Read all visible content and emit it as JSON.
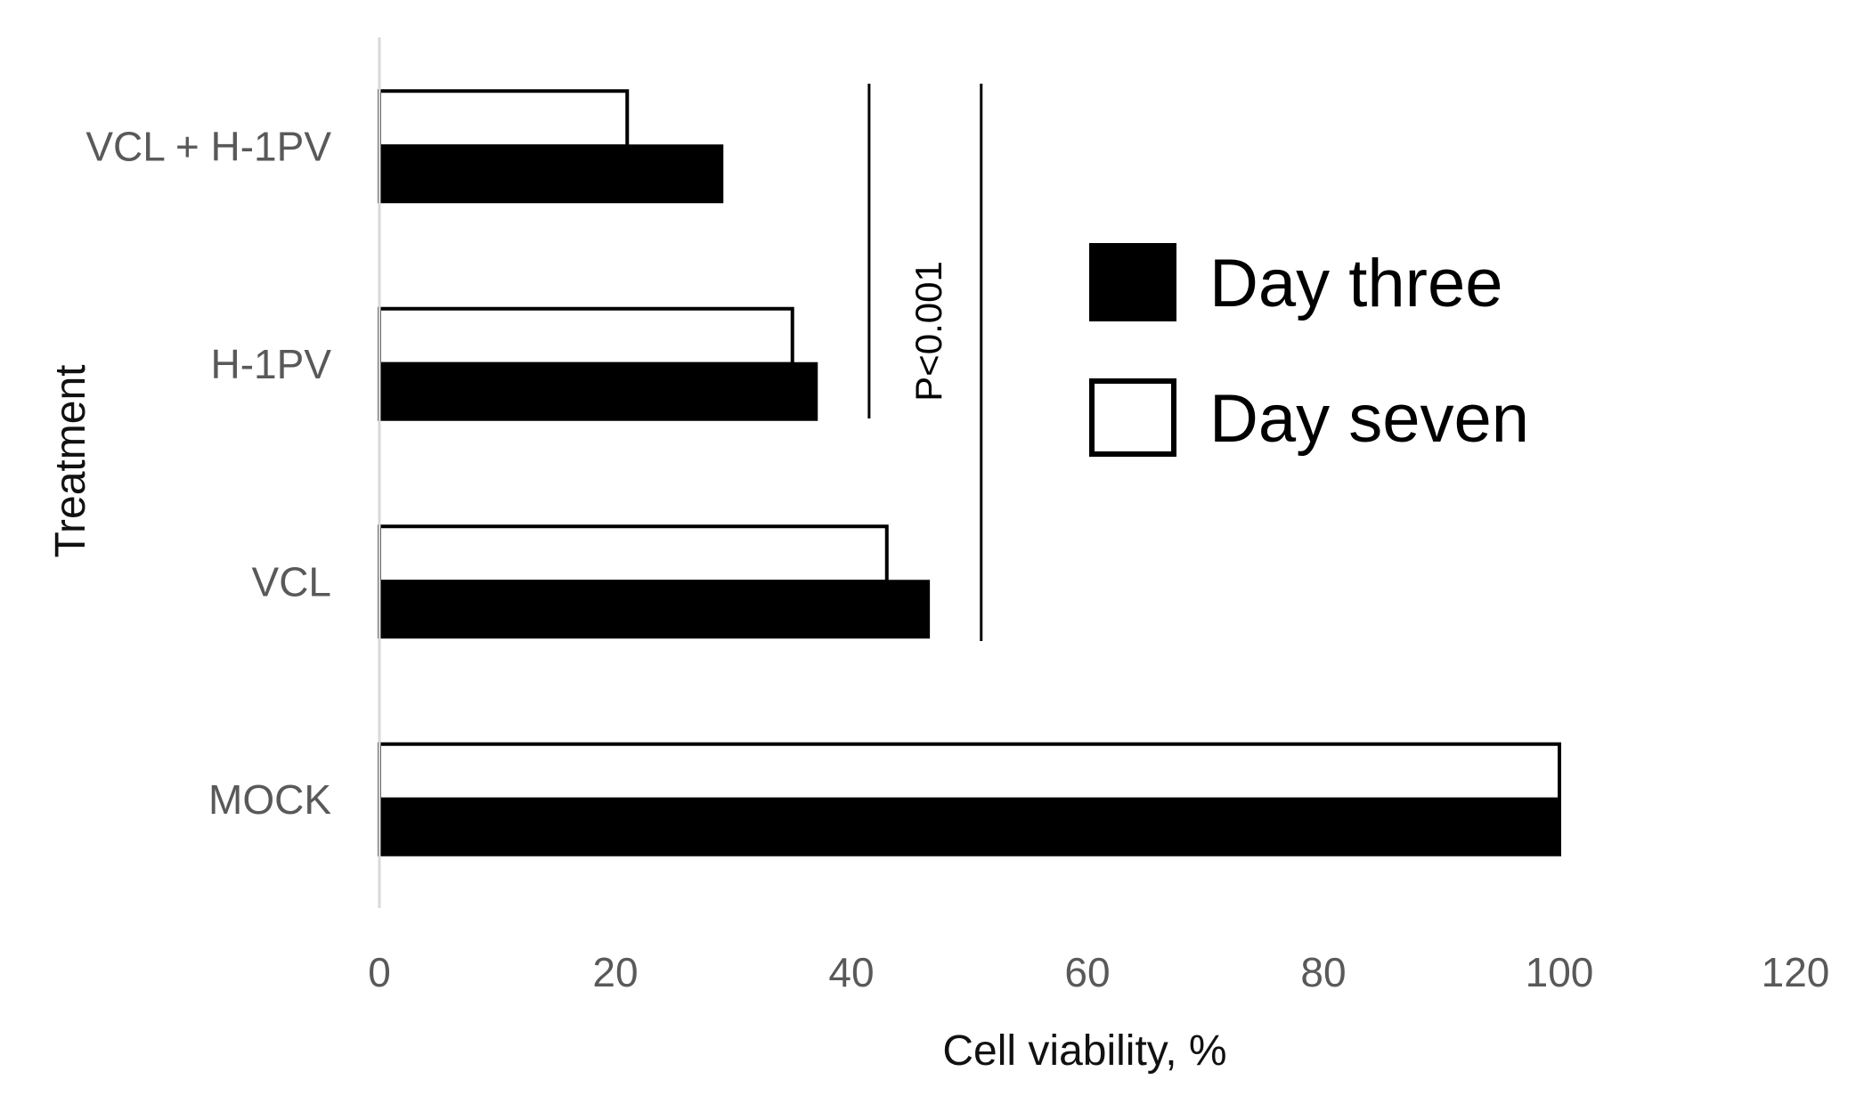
{
  "chart_data": {
    "type": "bar",
    "orientation": "horizontal",
    "title": "",
    "xlabel": "Cell viability, %",
    "ylabel": "Treatment",
    "xlim": [
      0,
      120
    ],
    "xticks": [
      "0",
      "20",
      "40",
      "60",
      "80",
      "100",
      "120"
    ],
    "categories": [
      "VCL + H-1PV",
      "H-1PV",
      "VCL",
      "MOCK"
    ],
    "series": [
      {
        "name": "Day seven",
        "color": "#ffffff",
        "edge": "#000000",
        "values": [
          21,
          35,
          43,
          100
        ]
      },
      {
        "name": "Day three",
        "color": "#000000",
        "edge": "#000000",
        "values": [
          29,
          37,
          46.5,
          100
        ]
      }
    ],
    "legend": {
      "position": "right",
      "entries": [
        "Day three",
        "Day seven"
      ]
    },
    "annotations": [
      {
        "text": "P<0.001",
        "spans": [
          "VCL + H-1PV",
          "H-1PV"
        ],
        "x_lines": [
          41.5,
          51
        ]
      }
    ],
    "grid": false
  }
}
